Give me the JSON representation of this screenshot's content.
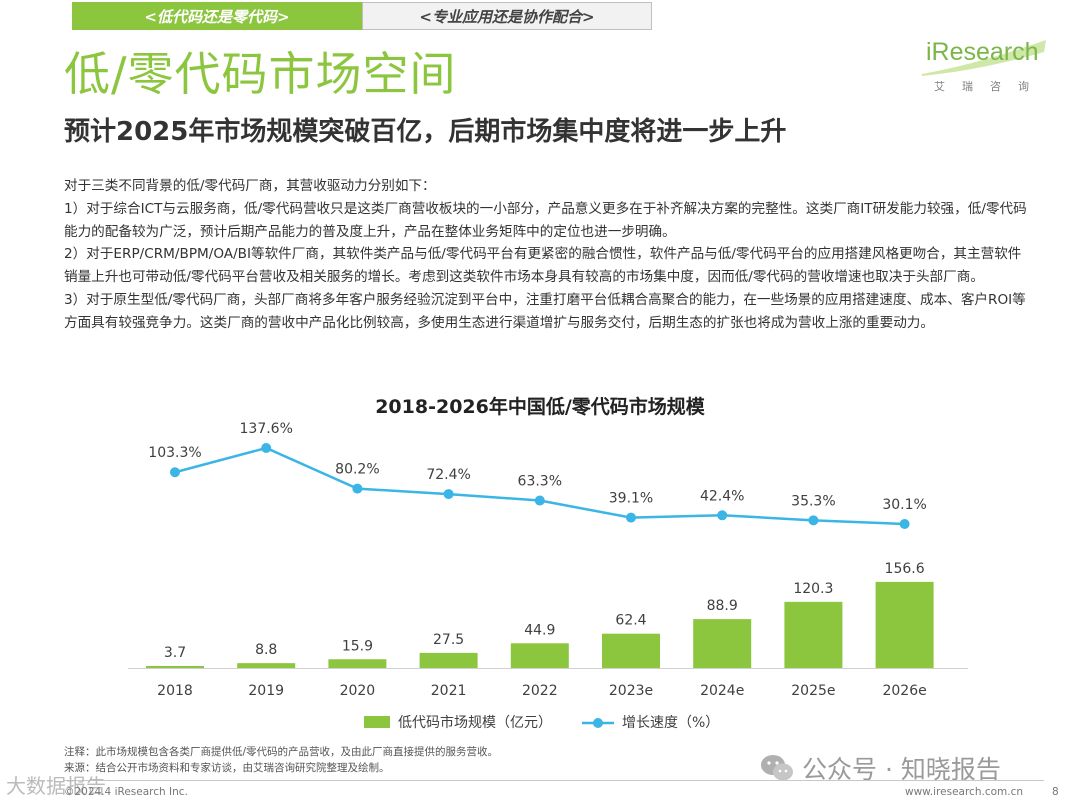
{
  "header": {
    "tab_active": "<低代码还是零代码>",
    "tab_inactive": "<专业应用还是协作配合>"
  },
  "logo": {
    "word": "iResearch",
    "sub": "艾瑞咨询"
  },
  "title": "低/零代码市场空间",
  "subtitle": "预计2025年市场规模突破百亿，后期市场集中度将进一步上升",
  "body": [
    "对于三类不同背景的低/零代码厂商，其营收驱动力分别如下：",
    "1）对于综合ICT与云服务商，低/零代码营收只是这类厂商营收板块的一小部分，产品意义更多在于补齐解决方案的完整性。这类厂商IT研发能力较强，低/零代码能力的配备较为广泛，预计后期产品能力的普及度上升，产品在整体业务矩阵中的定位也进一步明确。",
    "2）对于ERP/CRM/BPM/OA/BI等软件厂商，其软件类产品与低/零代码平台有更紧密的融合惯性，软件产品与低/零代码平台的应用搭建风格更吻合，其主营软件销量上升也可带动低/零代码平台营收及相关服务的增长。考虑到这类软件市场本身具有较高的市场集中度，因而低/零代码的营收增速也取决于头部厂商。",
    "3）对于原生型低/零代码厂商，头部厂商将多年客户服务经验沉淀到平台中，注重打磨平台低耦合高聚合的能力，在一些场景的应用搭建速度、成本、客户ROI等方面具有较强竞争力。这类厂商的营收中产品化比例较高，多使用生态进行渠道增扩与服务交付，后期生态的扩张也将成为营收上涨的重要动力。"
  ],
  "chart_data": {
    "type": "bar+line",
    "title": "2018-2026年中国低/零代码市场规模",
    "categories": [
      "2018",
      "2019",
      "2020",
      "2021",
      "2022",
      "2023e",
      "2024e",
      "2025e",
      "2026e"
    ],
    "series": [
      {
        "name": "低代码市场规模（亿元）",
        "type": "bar",
        "color": "#8cc63f",
        "values": [
          3.7,
          8.8,
          15.9,
          27.5,
          44.9,
          62.4,
          88.9,
          120.3,
          156.6
        ]
      },
      {
        "name": "增长速度（%）",
        "type": "line",
        "color": "#3ab5e6",
        "values": [
          103.3,
          137.6,
          80.2,
          72.4,
          63.3,
          39.1,
          42.4,
          35.3,
          30.1
        ],
        "labels": [
          "103.3%",
          "137.6%",
          "80.2%",
          "72.4%",
          "63.3%",
          "39.1%",
          "42.4%",
          "35.3%",
          "30.1%"
        ]
      }
    ],
    "legend": "bottom-center",
    "bar_ylim": [
      0,
      180
    ],
    "line_ylim": [
      0,
      140
    ]
  },
  "footnotes": {
    "note": "注释：此市场规模包含各类厂商提供低/零代码的产品营收，及由此厂商直接提供的服务营收。",
    "source": "来源：结合公开市场资料和专家访谈，由艾瑞咨询研究院整理及绘制。"
  },
  "watermark": "公众号 · 知晓报告",
  "corner_watermark": "大数据报告",
  "copyright": "©2024.4 iResearch Inc.",
  "site": "www.iresearch.com.cn",
  "page_number": "8"
}
